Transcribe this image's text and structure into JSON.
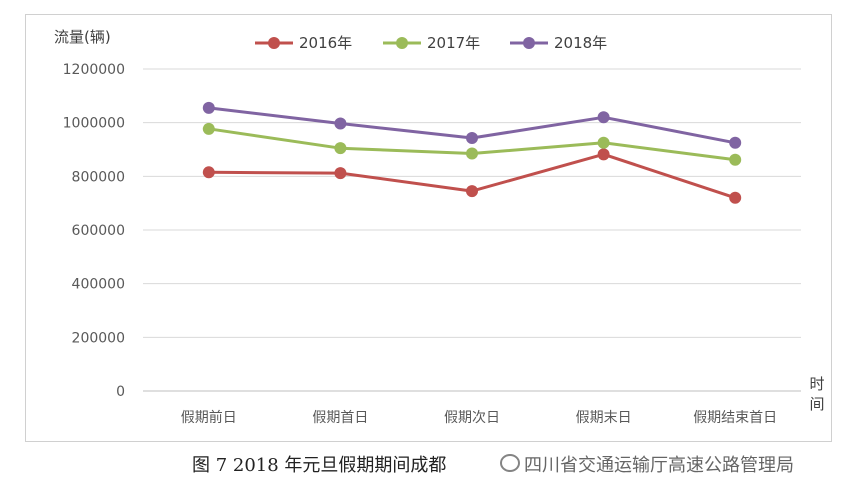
{
  "chart_data": {
    "type": "line",
    "title": "",
    "ylabel": "流量(辆)",
    "xlabel": "时间",
    "categories": [
      "假期前日",
      "假期首日",
      "假期次日",
      "假期末日",
      "假期结束首日"
    ],
    "ylim": [
      0,
      1200000
    ],
    "yticks": [
      0,
      200000,
      400000,
      600000,
      800000,
      1000000,
      1200000
    ],
    "grid": true,
    "legend_position": "top",
    "series": [
      {
        "name": "2016年",
        "color": "#c0504d",
        "values": [
          815000,
          812000,
          745000,
          882000,
          720000
        ]
      },
      {
        "name": "2017年",
        "color": "#9bbb59",
        "values": [
          977000,
          905000,
          885000,
          925000,
          862000
        ]
      },
      {
        "name": "2018年",
        "color": "#8064a2",
        "values": [
          1055000,
          997000,
          943000,
          1020000,
          925000
        ]
      }
    ]
  },
  "caption": "图 7  2018 年元旦假期期间成都",
  "watermark": "四川省交通运输厅高速公路管理局"
}
